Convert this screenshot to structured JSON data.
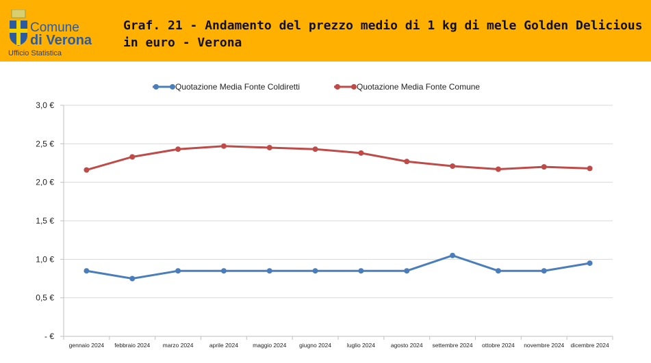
{
  "header": {
    "logo_line1": "Comune",
    "logo_line2": "di Verona",
    "logo_sub": "Ufficio Statistica",
    "title": "Graf. 21 - Andamento del prezzo medio di 1 kg di mele Golden Delicious in euro - Verona",
    "brand_color": "#FFB000"
  },
  "chart_data": {
    "type": "line",
    "categories": [
      "gennaio 2024",
      "febbraio 2024",
      "marzo 2024",
      "aprile 2024",
      "maggio 2024",
      "giugno 2024",
      "luglio 2024",
      "agosto 2024",
      "settembre 2024",
      "ottobre 2024",
      "novembre 2024",
      "dicembre 2024"
    ],
    "series": [
      {
        "name": "Quotazione Media Fonte Coldiretti",
        "color": "#4A7EBB",
        "values": [
          0.85,
          0.75,
          0.85,
          0.85,
          0.85,
          0.85,
          0.85,
          0.85,
          1.05,
          0.85,
          0.85,
          0.95
        ]
      },
      {
        "name": "Quotazione Media Fonte Comune",
        "color": "#BE4B48",
        "values": [
          2.16,
          2.33,
          2.43,
          2.47,
          2.45,
          2.43,
          2.38,
          2.27,
          2.21,
          2.17,
          2.2,
          2.18
        ]
      }
    ],
    "yticks": [
      "- €",
      "0,5 €",
      "1,0 €",
      "1,5 €",
      "2,0 €",
      "2,5 €",
      "3,0 €"
    ],
    "ylim": [
      0,
      3
    ],
    "grid": true,
    "legend": "top"
  }
}
